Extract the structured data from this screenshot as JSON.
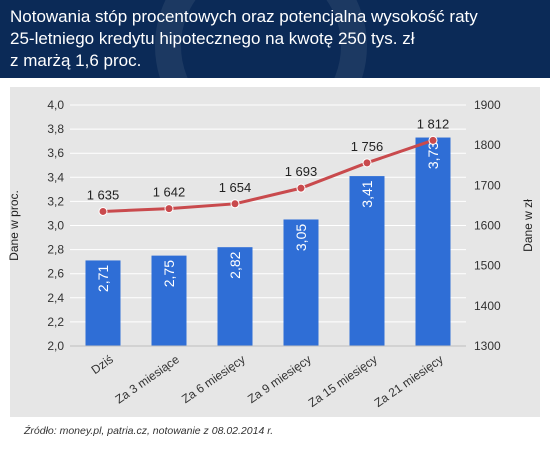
{
  "header": {
    "title_lines": [
      "Notowania stóp procentowych oraz potencjalna wysokość raty",
      "25-letniego kredytu hipotecznego na kwotę 250 tys. zł",
      "z marżą 1,6 proc."
    ]
  },
  "source": "Źródło: money.pl, patria.cz, notowanie z 08.02.2014 r.",
  "colors": {
    "header_bg": "#0b2a57",
    "bar": "#2f6ed6",
    "line": "#c94a4d",
    "panel": "#e6e6e6"
  },
  "chart_data": {
    "type": "bar",
    "categories": [
      "Dziś",
      "Za 3 miesiące",
      "Za 6 miesięcy",
      "Za 9 miesięcy",
      "Za 15 miesięcy",
      "Za 21 miesięcy"
    ],
    "series": [
      {
        "type": "bar",
        "axis": "left",
        "values": [
          2.71,
          2.75,
          2.82,
          3.05,
          3.41,
          3.73
        ],
        "labels": [
          "2,71",
          "2,75",
          "2,82",
          "3,05",
          "3,41",
          "3,73"
        ]
      },
      {
        "type": "line",
        "axis": "right",
        "values": [
          1635,
          1642,
          1654,
          1693,
          1756,
          1812
        ],
        "labels": [
          "1 635",
          "1 642",
          "1 654",
          "1 693",
          "1 756",
          "1 812"
        ]
      }
    ],
    "ylabel": "Dane w proc.",
    "y2label": "Dane w zł",
    "ylim": [
      2.0,
      4.0
    ],
    "y2lim": [
      1300,
      1900
    ],
    "yticks": [
      "2,0",
      "2,2",
      "2,4",
      "2,6",
      "2,8",
      "3,0",
      "3,2",
      "3,4",
      "3,6",
      "3,8",
      "4,0"
    ],
    "y2ticks": [
      "1300",
      "1400",
      "1500",
      "1600",
      "1700",
      "1800",
      "1900"
    ],
    "grid": true,
    "legend": "none"
  }
}
